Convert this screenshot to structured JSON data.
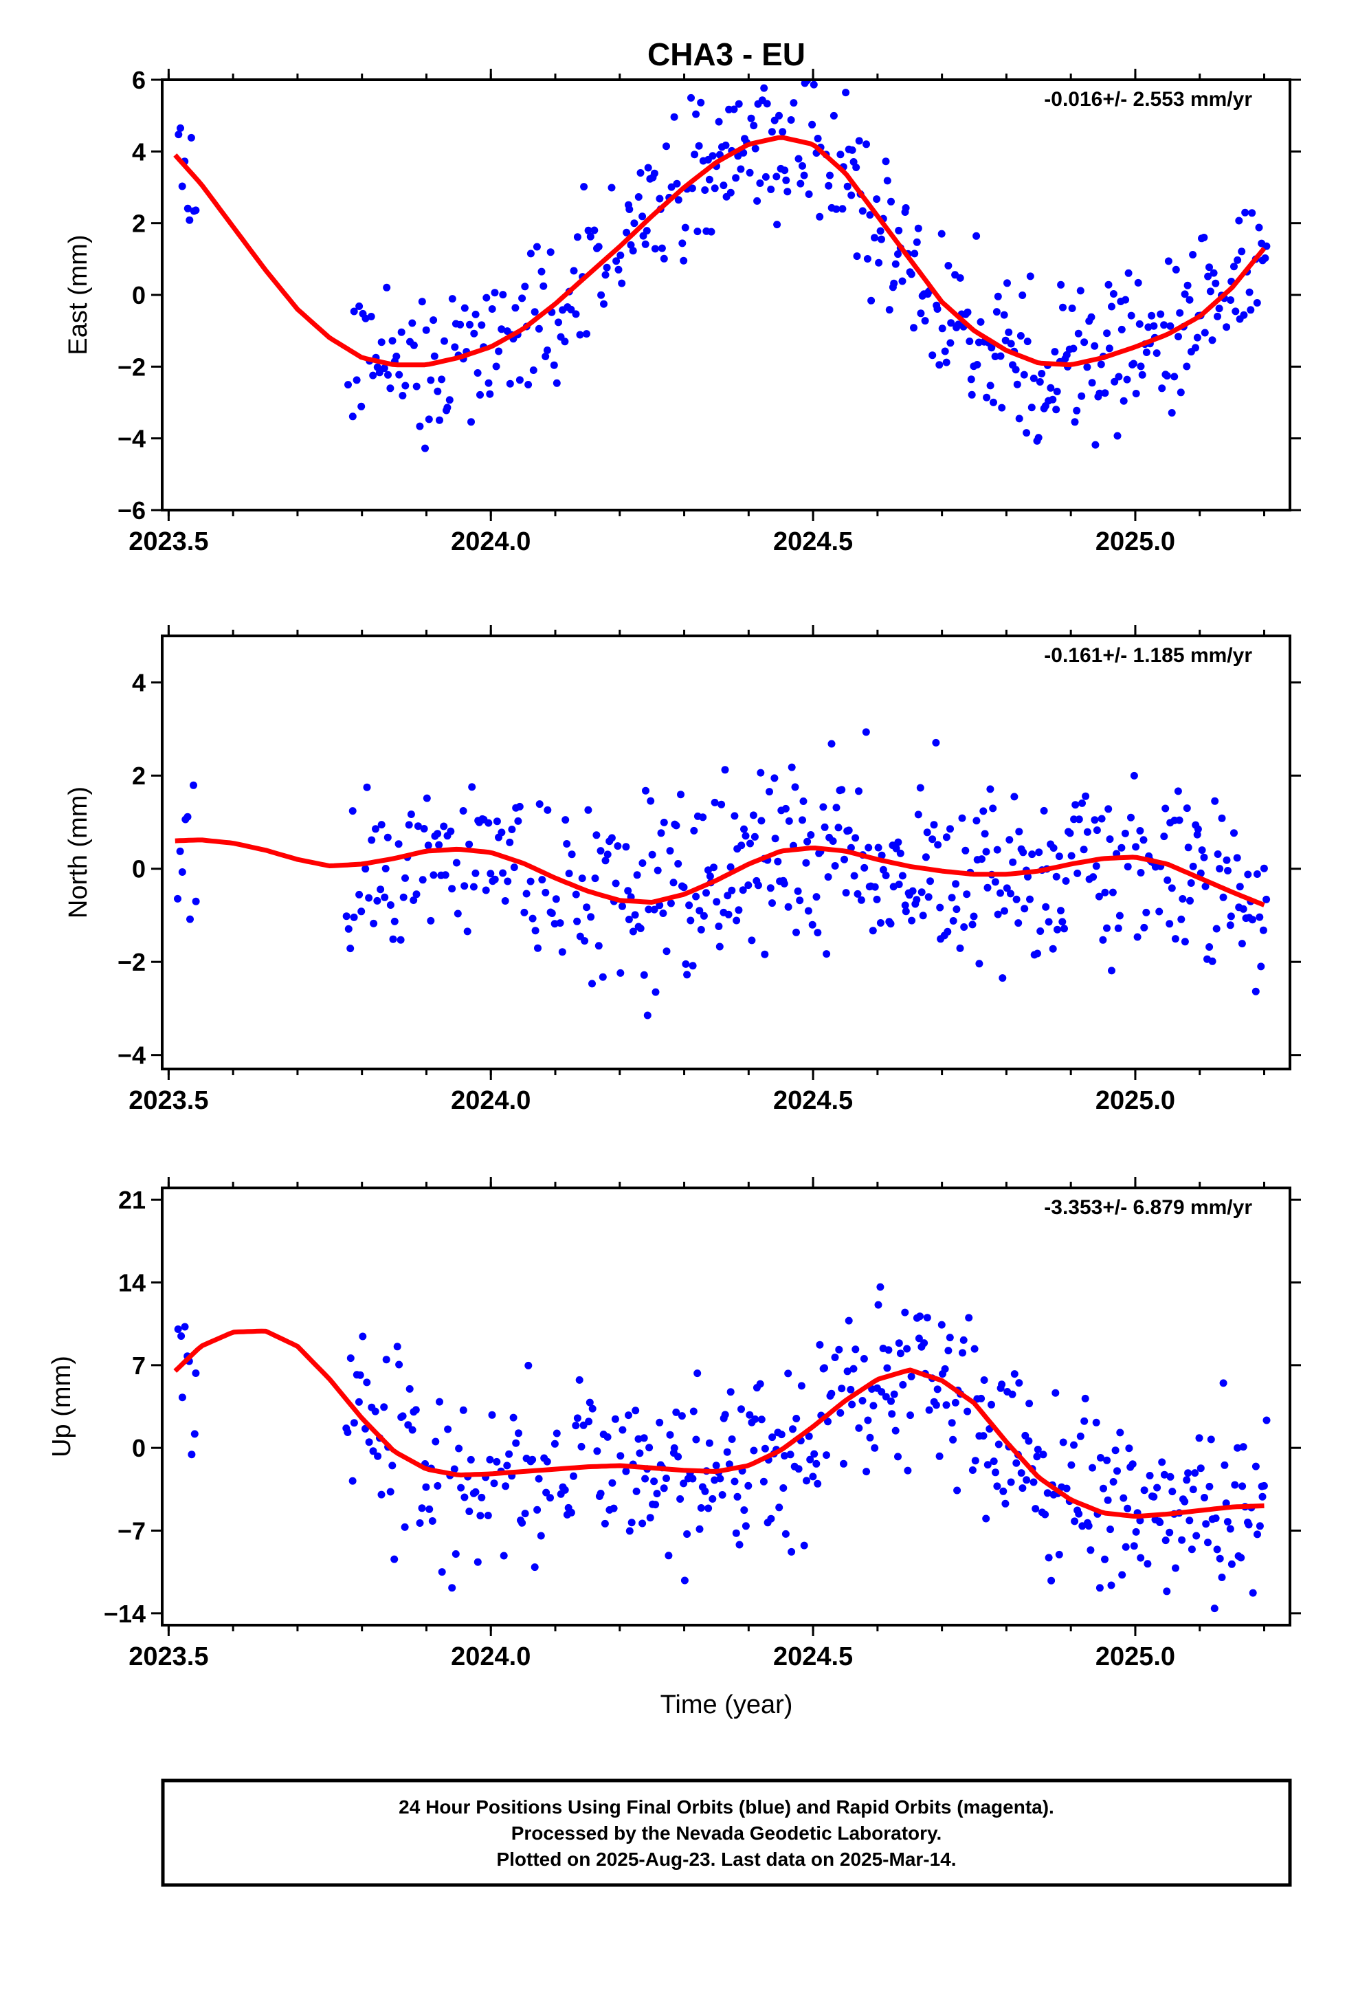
{
  "title": "CHA3 - EU",
  "xlabel": "Time (year)",
  "footer": {
    "line1": "24 Hour Positions Using Final Orbits (blue) and Rapid Orbits (magenta).",
    "line2": "Processed by the Nevada Geodetic Laboratory.",
    "line3": "Plotted on 2025-Aug-23. Last data on 2025-Mar-14."
  },
  "colors": {
    "points": "#0000ff",
    "fit": "#ff0000",
    "frame": "#000000"
  },
  "chart_data": [
    {
      "type": "scatter",
      "ylabel": "East (mm)",
      "rate": "-0.016+/- 2.553 mm/yr",
      "xlim": [
        2023.49,
        2025.24
      ],
      "ylim": [
        -6,
        6
      ],
      "xticks": [
        2023.5,
        2024.0,
        2024.5,
        2025.0
      ],
      "xtick_labels": [
        "2023.5",
        "2024.0",
        "2024.5",
        "2025.0"
      ],
      "yticks": [
        -6,
        -4,
        -2,
        0,
        2,
        4,
        6
      ],
      "ytick_labels": [
        "−6",
        "−4",
        "−2",
        "0",
        "2",
        "4",
        "6"
      ],
      "seed": 101,
      "noise": 1.05,
      "fit": {
        "x": [
          2023.51,
          2023.55,
          2023.6,
          2023.65,
          2023.7,
          2023.75,
          2023.8,
          2023.85,
          2023.9,
          2023.95,
          2024.0,
          2024.05,
          2024.1,
          2024.15,
          2024.2,
          2024.25,
          2024.3,
          2024.35,
          2024.4,
          2024.45,
          2024.5,
          2024.55,
          2024.6,
          2024.65,
          2024.7,
          2024.75,
          2024.8,
          2024.85,
          2024.9,
          2024.95,
          2025.0,
          2025.05,
          2025.1,
          2025.15,
          2025.2
        ],
        "y": [
          3.9,
          3.1,
          1.9,
          0.7,
          -0.4,
          -1.2,
          -1.75,
          -1.95,
          -1.95,
          -1.75,
          -1.45,
          -0.95,
          -0.25,
          0.55,
          1.35,
          2.2,
          3.0,
          3.7,
          4.2,
          4.4,
          4.2,
          3.4,
          2.2,
          1.0,
          -0.2,
          -1.0,
          -1.55,
          -1.9,
          -1.95,
          -1.75,
          -1.45,
          -1.1,
          -0.6,
          0.2,
          1.3
        ]
      }
    },
    {
      "type": "scatter",
      "ylabel": "North (mm)",
      "rate": "-0.161+/- 1.185 mm/yr",
      "xlim": [
        2023.49,
        2025.24
      ],
      "ylim": [
        -4.3,
        5.0
      ],
      "xticks": [
        2023.5,
        2024.0,
        2024.5,
        2025.0
      ],
      "xtick_labels": [
        "2023.5",
        "2024.0",
        "2024.5",
        "2025.0"
      ],
      "yticks": [
        -4,
        -2,
        0,
        2,
        4
      ],
      "ytick_labels": [
        "−4",
        "−2",
        "0",
        "2",
        "4"
      ],
      "seed": 202,
      "noise": 1.0,
      "fit": {
        "x": [
          2023.51,
          2023.55,
          2023.6,
          2023.65,
          2023.7,
          2023.75,
          2023.8,
          2023.85,
          2023.9,
          2023.95,
          2024.0,
          2024.05,
          2024.1,
          2024.15,
          2024.2,
          2024.25,
          2024.3,
          2024.35,
          2024.4,
          2024.45,
          2024.5,
          2024.55,
          2024.6,
          2024.65,
          2024.7,
          2024.75,
          2024.8,
          2024.85,
          2024.9,
          2024.95,
          2025.0,
          2025.05,
          2025.1,
          2025.15,
          2025.2
        ],
        "y": [
          0.6,
          0.62,
          0.55,
          0.4,
          0.2,
          0.06,
          0.1,
          0.22,
          0.38,
          0.42,
          0.35,
          0.12,
          -0.2,
          -0.48,
          -0.68,
          -0.72,
          -0.55,
          -0.25,
          0.1,
          0.38,
          0.45,
          0.38,
          0.2,
          0.05,
          -0.05,
          -0.12,
          -0.12,
          -0.05,
          0.1,
          0.22,
          0.25,
          0.1,
          -0.2,
          -0.5,
          -0.78
        ]
      }
    },
    {
      "type": "scatter",
      "ylabel": "Up (mm)",
      "rate": "-3.353+/- 6.879 mm/yr",
      "xlim": [
        2023.49,
        2025.24
      ],
      "ylim": [
        -15,
        22
      ],
      "xticks": [
        2023.5,
        2024.0,
        2024.5,
        2025.0
      ],
      "xtick_labels": [
        "2023.5",
        "2024.0",
        "2024.5",
        "2025.0"
      ],
      "yticks": [
        -14,
        -7,
        0,
        7,
        14,
        21
      ],
      "ytick_labels": [
        "−14",
        "−7",
        "0",
        "7",
        "14",
        "21"
      ],
      "seed": 303,
      "noise": 3.8,
      "fit": {
        "x": [
          2023.51,
          2023.55,
          2023.6,
          2023.65,
          2023.7,
          2023.75,
          2023.8,
          2023.85,
          2023.9,
          2023.95,
          2024.0,
          2024.05,
          2024.1,
          2024.15,
          2024.2,
          2024.25,
          2024.3,
          2024.35,
          2024.4,
          2024.45,
          2024.5,
          2024.55,
          2024.6,
          2024.65,
          2024.7,
          2024.75,
          2024.8,
          2024.85,
          2024.9,
          2024.95,
          2025.0,
          2025.05,
          2025.1,
          2025.15,
          2025.2
        ],
        "y": [
          6.5,
          8.6,
          9.8,
          9.9,
          8.6,
          5.8,
          2.5,
          -0.3,
          -1.8,
          -2.3,
          -2.2,
          -2.0,
          -1.8,
          -1.6,
          -1.5,
          -1.7,
          -1.9,
          -2.0,
          -1.5,
          -0.2,
          1.8,
          4.0,
          5.8,
          6.6,
          5.7,
          3.8,
          0.5,
          -2.5,
          -4.4,
          -5.5,
          -5.8,
          -5.6,
          -5.3,
          -5.0,
          -4.9
        ]
      }
    }
  ]
}
